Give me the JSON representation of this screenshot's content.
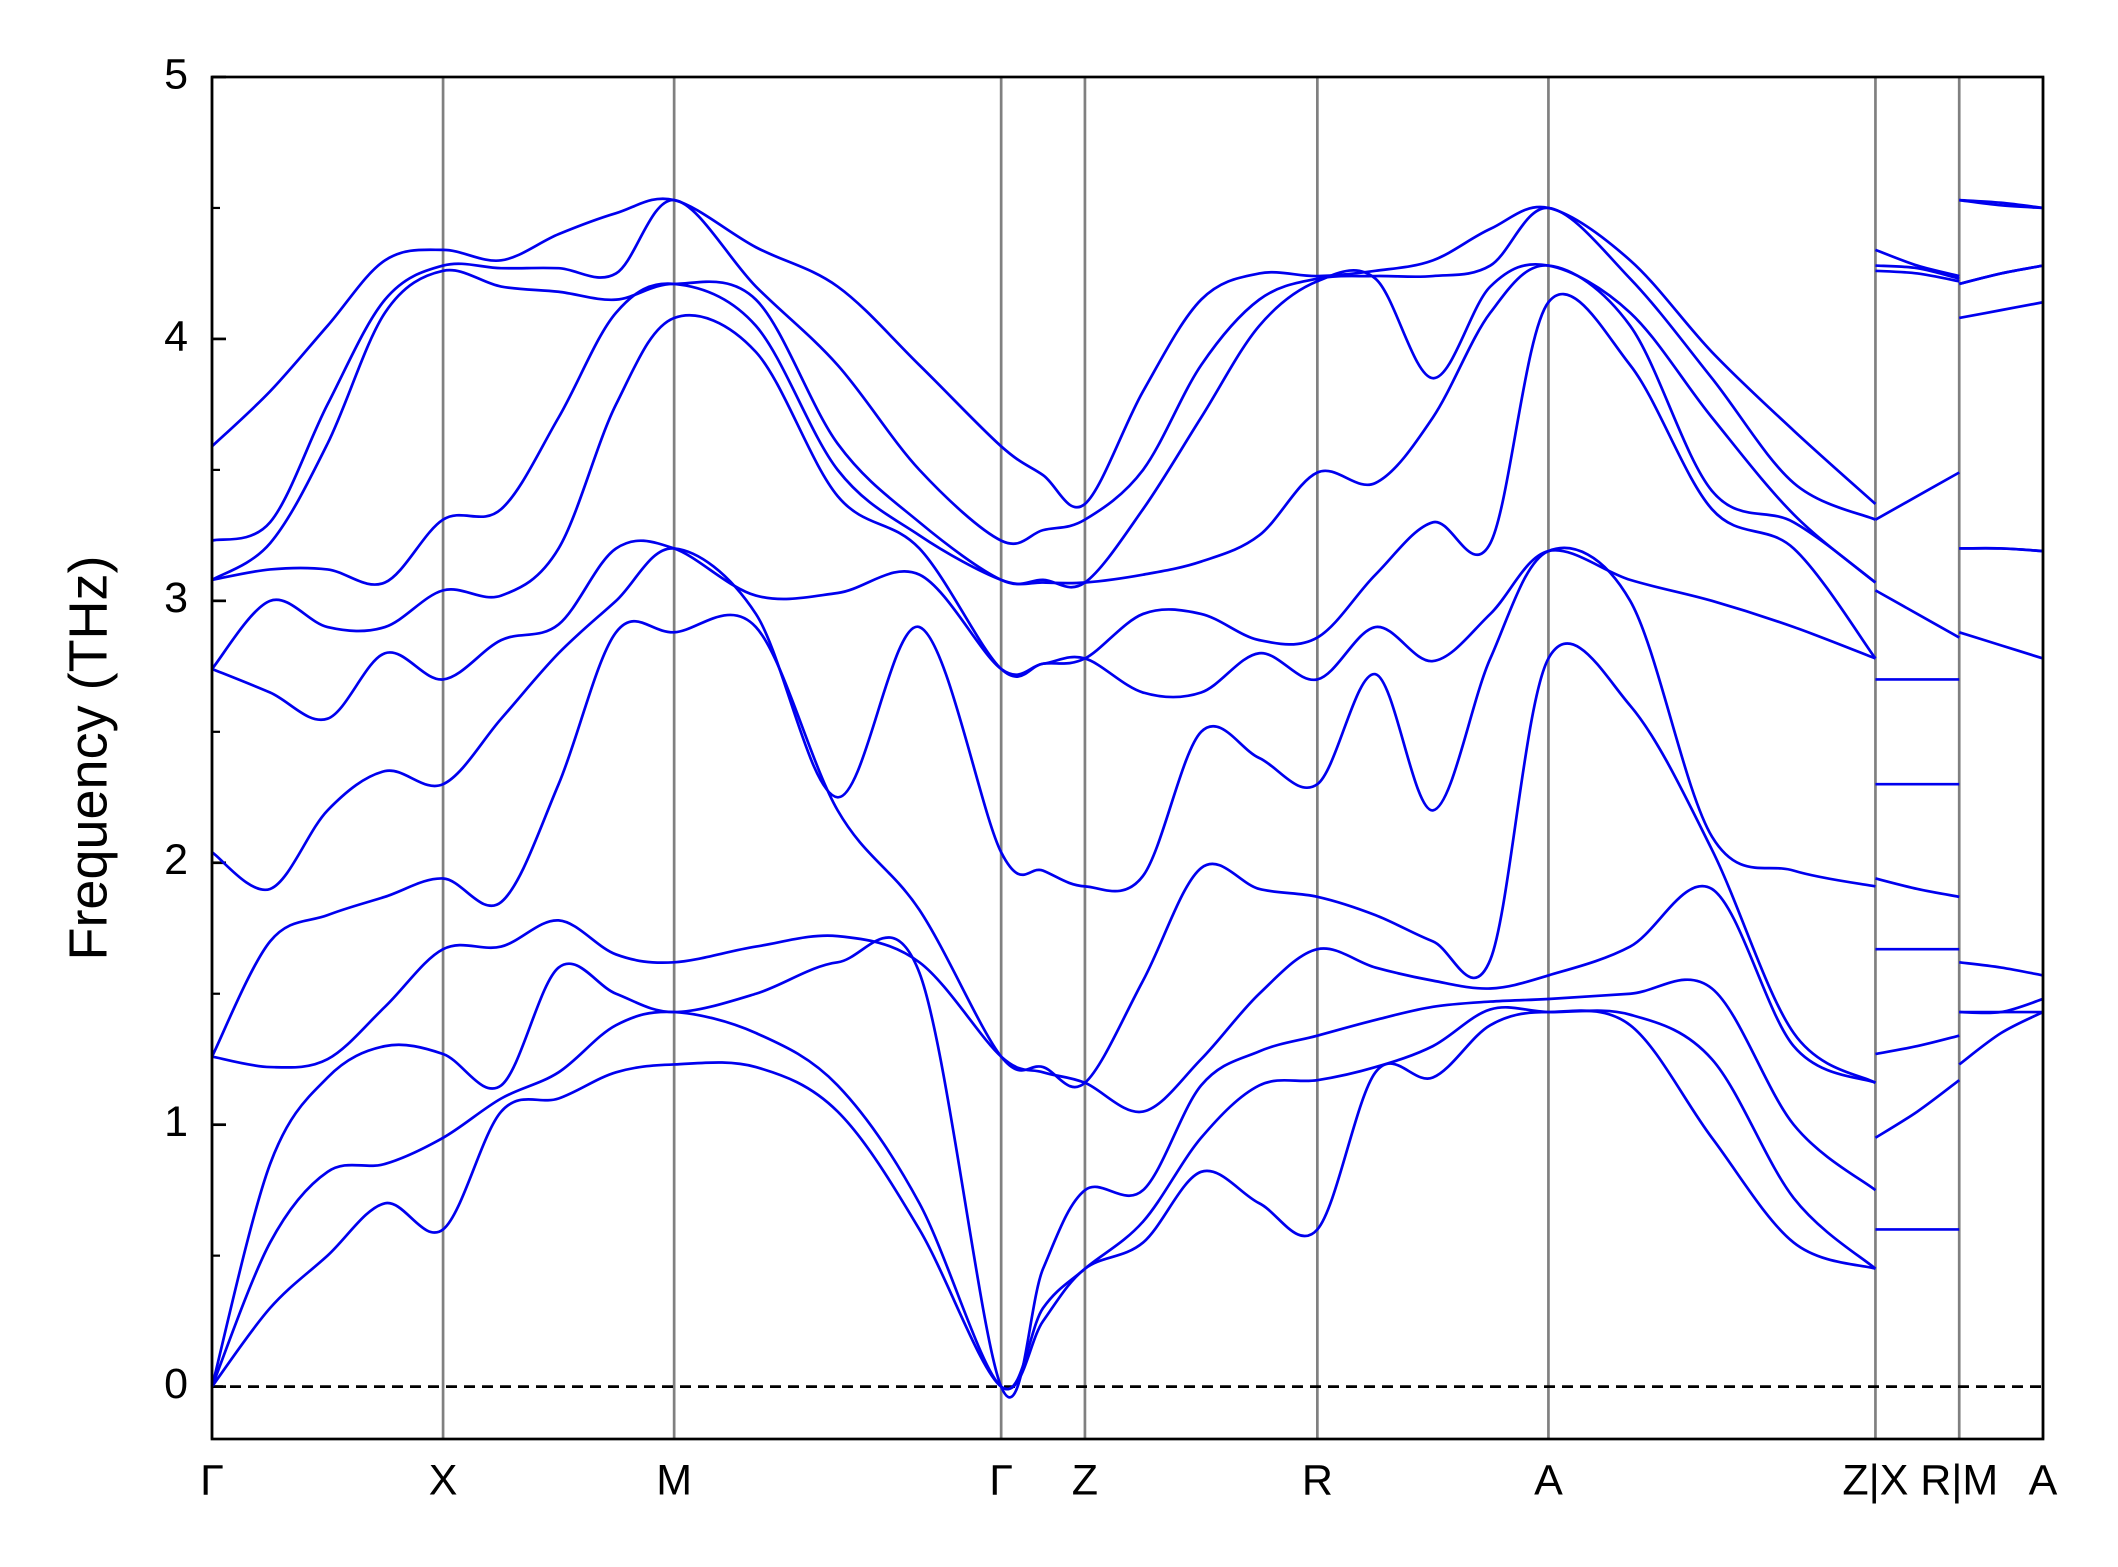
{
  "chart_data": {
    "type": "line",
    "ylabel": "Frequency (THz)",
    "color": "#0000ee",
    "xlim": [
      0,
      13.55
    ],
    "ylim": [
      -0.2,
      5
    ],
    "yticks": [
      0,
      1,
      2,
      3,
      4,
      5
    ],
    "yminorticks": [
      0.5,
      1.5,
      2.5,
      3.5,
      4.5
    ],
    "xticks": [
      {
        "value": 0,
        "label": "Γ"
      },
      {
        "value": 1.71,
        "label": "X"
      },
      {
        "value": 3.42,
        "label": "M"
      },
      {
        "value": 5.84,
        "label": "Γ"
      },
      {
        "value": 6.46,
        "label": "Z"
      },
      {
        "value": 8.18,
        "label": "R"
      },
      {
        "value": 9.89,
        "label": "A"
      },
      {
        "value": 12.31,
        "label": "Z|X"
      },
      {
        "value": 12.93,
        "label": "R|M"
      },
      {
        "value": 13.55,
        "label": "A"
      }
    ],
    "reference_line": {
      "y": 0,
      "style": "dashed"
    },
    "x": [
      0,
      0.43,
      0.855,
      1.28,
      1.71,
      2.14,
      2.565,
      2.99,
      3.42,
      4.025,
      4.63,
      5.235,
      5.84,
      6.15,
      6.46,
      6.89,
      7.32,
      7.75,
      8.18,
      8.61,
      9.035,
      9.46,
      9.89,
      10.495,
      11.1,
      11.705,
      12.31,
      12.31,
      12.31,
      12.62,
      12.93,
      12.93,
      12.93,
      13.24,
      13.55
    ],
    "series": [
      {
        "values": [
          0,
          0.3,
          0.5,
          0.7,
          0.6,
          1.05,
          1.1,
          1.2,
          1.23,
          1.22,
          1.05,
          0.6,
          0,
          0.25,
          0.45,
          0.55,
          0.82,
          0.7,
          0.6,
          1.2,
          1.18,
          1.38,
          1.43,
          1.38,
          0.95,
          0.55,
          0.45,
          null,
          0.6,
          0.6,
          0.6,
          null,
          1.23,
          1.35,
          1.43
        ]
      },
      {
        "values": [
          0,
          0.55,
          0.82,
          0.85,
          0.95,
          1.1,
          1.2,
          1.38,
          1.43,
          1.35,
          1.15,
          0.7,
          0,
          0.3,
          0.45,
          0.63,
          0.95,
          1.15,
          1.17,
          1.22,
          1.3,
          1.44,
          1.43,
          1.42,
          1.25,
          0.72,
          0.45,
          null,
          0.95,
          1.05,
          1.17,
          null,
          1.43,
          1.43,
          1.43
        ]
      },
      {
        "values": [
          0,
          0.85,
          1.18,
          1.3,
          1.27,
          1.15,
          1.6,
          1.5,
          1.43,
          1.5,
          1.62,
          1.58,
          0,
          0.45,
          0.75,
          0.75,
          1.15,
          1.28,
          1.34,
          1.4,
          1.45,
          1.47,
          1.48,
          1.5,
          1.52,
          1.0,
          0.75,
          null,
          1.27,
          1.3,
          1.34,
          null,
          1.43,
          1.43,
          1.48
        ]
      },
      {
        "values": [
          1.26,
          1.22,
          1.25,
          1.45,
          1.67,
          1.68,
          1.78,
          1.65,
          1.62,
          1.68,
          1.72,
          1.62,
          1.26,
          1.2,
          1.16,
          1.05,
          1.25,
          1.5,
          1.67,
          1.6,
          1.55,
          1.52,
          1.57,
          1.68,
          1.9,
          1.3,
          1.16,
          null,
          1.67,
          1.67,
          1.67,
          null,
          1.62,
          1.6,
          1.57
        ]
      },
      {
        "values": [
          1.26,
          1.7,
          1.8,
          1.87,
          1.94,
          1.85,
          2.3,
          2.88,
          2.88,
          2.9,
          2.2,
          1.82,
          1.26,
          1.22,
          1.16,
          1.55,
          1.98,
          1.9,
          1.87,
          1.8,
          1.7,
          1.63,
          2.78,
          2.6,
          2.05,
          1.35,
          1.16,
          null,
          1.94,
          1.9,
          1.87,
          null,
          2.88,
          2.83,
          2.78
        ]
      },
      {
        "values": [
          2.04,
          1.9,
          2.2,
          2.35,
          2.3,
          2.55,
          2.8,
          3.0,
          3.2,
          2.95,
          2.25,
          2.9,
          2.04,
          1.97,
          1.91,
          1.95,
          2.5,
          2.4,
          2.3,
          2.72,
          2.2,
          2.78,
          3.19,
          3.0,
          2.1,
          1.97,
          1.91,
          null,
          2.3,
          2.3,
          2.3,
          null,
          3.2,
          3.2,
          3.19
        ]
      },
      {
        "values": [
          2.74,
          2.65,
          2.55,
          2.8,
          2.7,
          2.85,
          2.91,
          3.2,
          3.2,
          3.02,
          3.03,
          3.1,
          2.74,
          2.76,
          2.78,
          2.65,
          2.65,
          2.8,
          2.7,
          2.9,
          2.77,
          2.95,
          3.19,
          3.08,
          3.0,
          2.9,
          2.78,
          null,
          2.7,
          2.7,
          2.7,
          null,
          3.2,
          3.2,
          3.19
        ]
      },
      {
        "values": [
          2.74,
          3.0,
          2.9,
          2.9,
          3.04,
          3.02,
          3.2,
          3.75,
          4.08,
          3.95,
          3.4,
          3.2,
          2.74,
          2.76,
          2.78,
          2.95,
          2.95,
          2.85,
          2.86,
          3.1,
          3.3,
          3.22,
          4.14,
          3.9,
          3.35,
          3.2,
          2.78,
          null,
          3.04,
          2.95,
          2.86,
          null,
          4.08,
          4.11,
          4.14
        ]
      },
      {
        "values": [
          3.08,
          3.12,
          3.12,
          3.07,
          3.31,
          3.35,
          3.7,
          4.1,
          4.21,
          4.05,
          3.5,
          3.25,
          3.08,
          3.07,
          3.07,
          3.1,
          3.15,
          3.25,
          3.49,
          3.45,
          3.7,
          4.1,
          4.28,
          4.05,
          3.42,
          3.3,
          3.07,
          null,
          3.31,
          3.4,
          3.49,
          null,
          4.21,
          4.25,
          4.28
        ]
      },
      {
        "values": [
          3.08,
          3.22,
          3.6,
          4.1,
          4.26,
          4.2,
          4.18,
          4.15,
          4.21,
          4.15,
          3.6,
          3.3,
          3.08,
          3.08,
          3.07,
          3.35,
          3.7,
          4.05,
          4.22,
          4.23,
          3.85,
          4.2,
          4.28,
          4.1,
          3.7,
          3.33,
          3.07,
          null,
          4.26,
          4.25,
          4.22,
          null,
          4.21,
          4.25,
          4.28
        ]
      },
      {
        "values": [
          3.23,
          3.3,
          3.75,
          4.15,
          4.28,
          4.27,
          4.27,
          4.25,
          4.53,
          4.2,
          3.9,
          3.5,
          3.23,
          3.27,
          3.31,
          3.5,
          3.9,
          4.15,
          4.23,
          4.24,
          4.24,
          4.28,
          4.5,
          4.23,
          3.85,
          3.45,
          3.31,
          null,
          4.28,
          4.27,
          4.23,
          null,
          4.53,
          4.51,
          4.5
        ]
      },
      {
        "values": [
          3.59,
          3.8,
          4.05,
          4.3,
          4.34,
          4.3,
          4.4,
          4.48,
          4.53,
          4.35,
          4.2,
          3.9,
          3.59,
          3.48,
          3.37,
          3.8,
          4.15,
          4.25,
          4.24,
          4.26,
          4.3,
          4.42,
          4.5,
          4.3,
          3.95,
          3.65,
          3.37,
          null,
          4.34,
          4.28,
          4.24,
          null,
          4.53,
          4.52,
          4.5
        ]
      }
    ]
  }
}
